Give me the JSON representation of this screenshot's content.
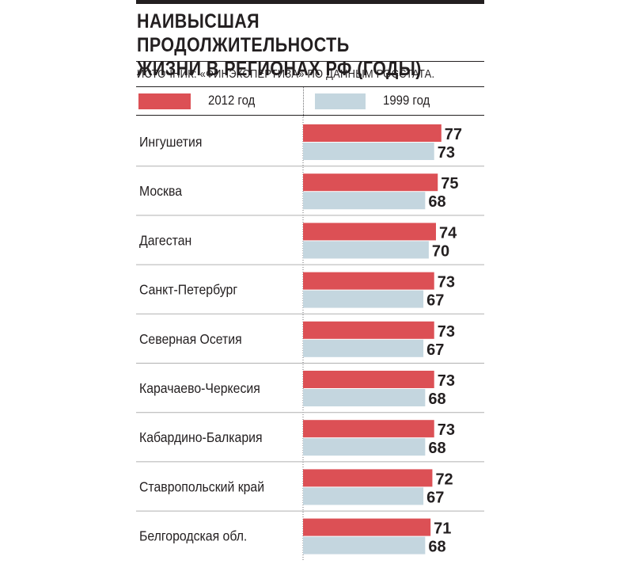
{
  "header": {
    "title_line1": "НАИВЫСШАЯ ПРОДОЛЖИТЕЛЬНОСТЬ",
    "title_line2": "ЖИЗНИ В РЕГИОНАХ РФ (ГОДЫ)",
    "source": "ИСТОЧНИК: «ФИНЭКСПЕРТИЗА» ПО ДАННЫМ РОССТАТА."
  },
  "colors": {
    "series_2012": "#dc5055",
    "series_1999": "#c4d6df",
    "text": "#231f20"
  },
  "chart_data": {
    "type": "bar",
    "orientation": "horizontal",
    "categories": [
      "Ингушетия",
      "Москва",
      "Дагестан",
      "Санкт-Петербург",
      "Северная Осетия",
      "Карачаево-Черкесия",
      "Кабардино-Балкария",
      "Ставропольский край",
      "Белгородская обл."
    ],
    "series": [
      {
        "name": "2012 год",
        "color": "#dc5055",
        "values": [
          77,
          75,
          74,
          73,
          73,
          73,
          73,
          72,
          71
        ]
      },
      {
        "name": "1999 год",
        "color": "#c4d6df",
        "values": [
          73,
          68,
          70,
          67,
          67,
          68,
          68,
          67,
          68
        ]
      }
    ],
    "title": "НАИВЫСШАЯ ПРОДОЛЖИТЕЛЬНОСТЬ ЖИЗНИ В РЕГИОНАХ РФ (ГОДЫ)",
    "xlim": [
      0,
      77
    ],
    "grid": false,
    "legend": "top",
    "data_labels": true
  }
}
